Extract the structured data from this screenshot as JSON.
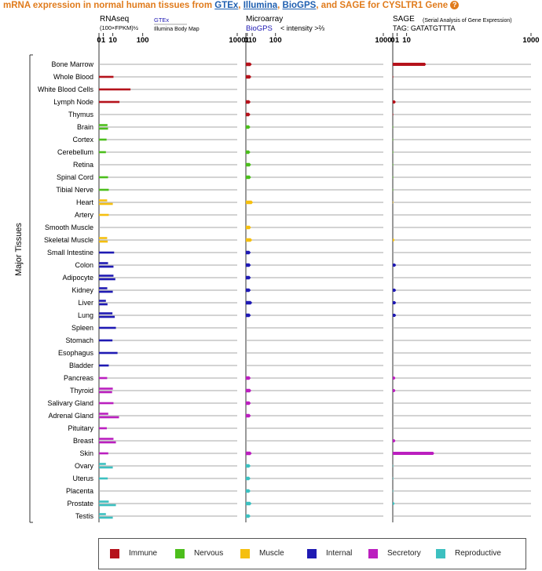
{
  "title": {
    "prefix": "mRNA expression in normal human tissues from ",
    "link_gtex": "GTEx",
    "sep1": ", ",
    "link_illumina": "Illumina",
    "sep2": ", ",
    "link_biogps": "BioGPS",
    "middle": ", and SAGE for ",
    "gene": "CYSLTR1",
    "suffix": " Gene",
    "help": "?"
  },
  "colors": {
    "Immune": "#b5121b",
    "Nervous": "#4cbe1c",
    "Muscle": "#f5bf0f",
    "Internal": "#1f1ab3",
    "Secretory": "#bb1fbf",
    "Reproductive": "#3cc0c0"
  },
  "legend": [
    "Immune",
    "Nervous",
    "Muscle",
    "Internal",
    "Secretory",
    "Reproductive"
  ],
  "chart_data": {
    "type": "bar",
    "orientation": "horizontal",
    "ylabel": "Major Tissues",
    "categories": [
      "Bone Marrow",
      "Whole Blood",
      "White Blood Cells",
      "Lymph Node",
      "Thymus",
      "Brain",
      "Cortex",
      "Cerebellum",
      "Retina",
      "Spinal Cord",
      "Tibial Nerve",
      "Heart",
      "Artery",
      "Smooth Muscle",
      "Skeletal Muscle",
      "Small Intestine",
      "Colon",
      "Adipocyte",
      "Kidney",
      "Liver",
      "Lung",
      "Spleen",
      "Stomach",
      "Esophagus",
      "Bladder",
      "Pancreas",
      "Thyroid",
      "Salivary Gland",
      "Adrenal Gland",
      "Pituitary",
      "Breast",
      "Skin",
      "Ovary",
      "Uterus",
      "Placenta",
      "Prostate",
      "Testis"
    ],
    "groups": [
      "Immune",
      "Immune",
      "Immune",
      "Immune",
      "Immune",
      "Nervous",
      "Nervous",
      "Nervous",
      "Nervous",
      "Nervous",
      "Nervous",
      "Muscle",
      "Muscle",
      "Muscle",
      "Muscle",
      "Internal",
      "Internal",
      "Internal",
      "Internal",
      "Internal",
      "Internal",
      "Internal",
      "Internal",
      "Internal",
      "Internal",
      "Secretory",
      "Secretory",
      "Secretory",
      "Secretory",
      "Secretory",
      "Secretory",
      "Secretory",
      "Reproductive",
      "Reproductive",
      "Reproductive",
      "Reproductive",
      "Reproductive"
    ],
    "panels": [
      {
        "name": "RNAseq",
        "header_lines": [
          "RNAseq",
          "(100×FPKM)½"
        ],
        "sub_label": "GTEx",
        "sub_label2": "Illumina Body Map",
        "scale": "power 1/2",
        "ticks": [
          0,
          1,
          10,
          100,
          1000
        ],
        "domain": [
          0,
          1000
        ],
        "series": [
          {
            "name": "GTEx",
            "values": [
              null,
              11,
              52,
              null,
              null,
              3.8,
              3,
              2.5,
              null,
              4.3,
              5,
              3.5,
              5,
              null,
              3.5,
              12,
              4.3,
              11,
              3.6,
              2.5,
              9.5,
              15,
              9.5,
              18,
              5,
              3.5,
              10,
              11,
              4.5,
              3.2,
              11,
              4.5,
              2.5,
              4,
              null,
              5,
              2.5
            ]
          },
          {
            "name": "Illumina Body Map",
            "values": [
              null,
              null,
              null,
              22,
              null,
              4.3,
              null,
              null,
              null,
              null,
              null,
              10,
              null,
              null,
              4,
              null,
              11,
              14,
              10,
              3.8,
              13,
              null,
              null,
              null,
              null,
              null,
              9,
              null,
              21,
              null,
              15,
              null,
              10,
              null,
              null,
              15,
              10
            ]
          }
        ]
      },
      {
        "name": "Microarray",
        "header_lines": [
          "Microarray",
          "< intensity >⅔"
        ],
        "sub_label": "BioGPS",
        "scale": "power 2/3",
        "ticks": [
          0,
          1,
          10,
          100,
          1000
        ],
        "domain": [
          0,
          1000
        ],
        "series": [
          {
            "name": "BioGPS",
            "values": [
              9,
              8,
              null,
              6.5,
              6,
              6,
              null,
              6,
              7.5,
              7.5,
              null,
              12,
              null,
              7.5,
              10,
              6.8,
              7,
              7,
              6.8,
              10,
              7,
              null,
              null,
              null,
              null,
              6.8,
              8,
              7,
              7,
              null,
              null,
              9,
              6.5,
              6.3,
              6.3,
              8.5,
              6.3
            ]
          }
        ]
      },
      {
        "name": "SAGE",
        "header_lines": [
          "SAGE",
          "TAG: GATATGTTTA"
        ],
        "sub_label": "(Serial Analysis of Gene Expression)",
        "scale": "power 1/2",
        "ticks": [
          0,
          1,
          10,
          1000
        ],
        "domain": [
          0,
          1000
        ],
        "series": [
          {
            "name": "SAGE",
            "values": [
              58,
              0,
              null,
              0.5,
              0,
              0,
              0,
              0,
              0,
              0,
              0,
              0,
              null,
              null,
              0.2,
              null,
              0.6,
              null,
              0.6,
              0.6,
              0.6,
              null,
              null,
              null,
              null,
              0.4,
              0.4,
              null,
              null,
              null,
              0.4,
              90,
              0,
              0,
              0,
              0.2,
              null
            ]
          }
        ]
      }
    ]
  }
}
